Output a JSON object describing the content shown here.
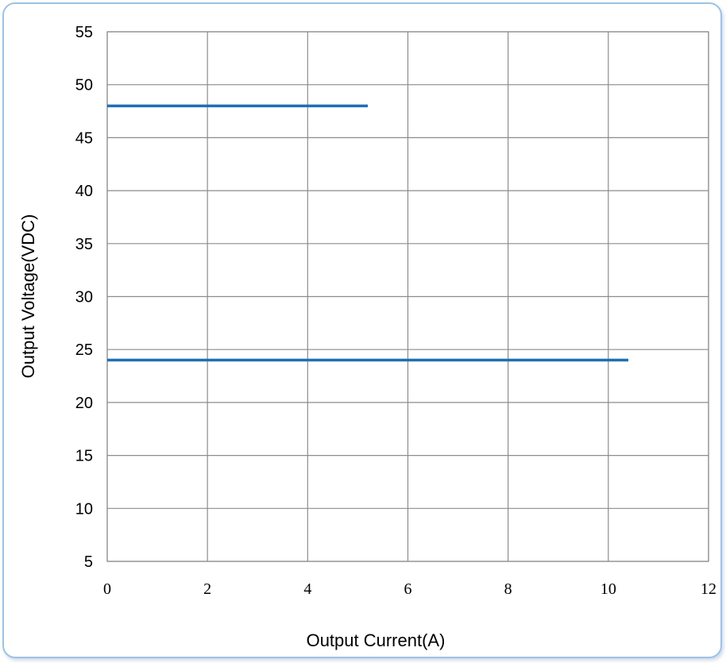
{
  "chart_data": {
    "type": "line",
    "title": "",
    "xlabel": "Output Current(A)",
    "ylabel": "Output Voltage(VDC)",
    "xlim": [
      0,
      12
    ],
    "ylim": [
      5,
      55
    ],
    "x_ticks": [
      "0",
      "2",
      "4",
      "6",
      "8",
      "10",
      "12"
    ],
    "y_ticks": [
      "5",
      "10",
      "15",
      "20",
      "25",
      "30",
      "35",
      "40",
      "45",
      "50",
      "55"
    ],
    "grid": true,
    "legend": "none",
    "series": [
      {
        "x": [
          0,
          5.2
        ],
        "y": [
          48,
          48
        ],
        "color": "#1f6fb5"
      },
      {
        "x": [
          0,
          10.4
        ],
        "y": [
          24,
          24
        ],
        "color": "#1f6fb5"
      }
    ]
  }
}
